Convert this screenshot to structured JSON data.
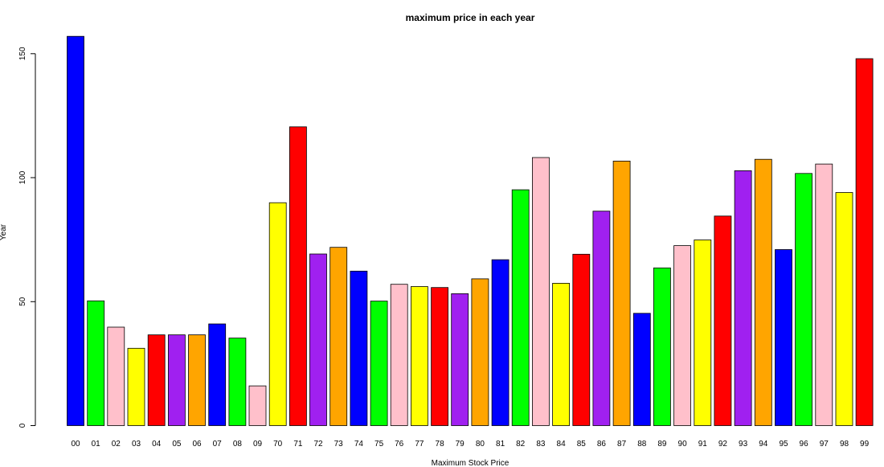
{
  "chart_data": {
    "type": "bar",
    "title": "maximum price in each year",
    "xlabel": "Maximum Stock Price",
    "ylabel": "Year",
    "ylim": [
      0,
      158
    ],
    "yticks": [
      0,
      50,
      100,
      150
    ],
    "grid": false,
    "categories": [
      "00",
      "01",
      "02",
      "03",
      "04",
      "05",
      "06",
      "07",
      "08",
      "09",
      "70",
      "71",
      "72",
      "73",
      "74",
      "75",
      "76",
      "77",
      "78",
      "79",
      "80",
      "81",
      "82",
      "83",
      "84",
      "85",
      "86",
      "87",
      "88",
      "89",
      "90",
      "91",
      "92",
      "93",
      "94",
      "95",
      "96",
      "97",
      "98",
      "99"
    ],
    "values": [
      157,
      50.3,
      39.7,
      31.2,
      36.6,
      36.6,
      36.6,
      41,
      35.3,
      16,
      89.9,
      120.5,
      69.2,
      71.9,
      62.3,
      50.2,
      57,
      56.1,
      55.7,
      53.2,
      59.2,
      66.9,
      95.1,
      108.1,
      57.4,
      69.1,
      86.5,
      106.7,
      45.3,
      63.6,
      72.6,
      74.9,
      84.5,
      102.8,
      107.4,
      71,
      101.7,
      105.5,
      94,
      148
    ],
    "colors": [
      "#0000ff",
      "#00ff00",
      "#ffc0cb",
      "#ffff00",
      "#ff0000",
      "#a020f0",
      "#ffa500"
    ]
  }
}
